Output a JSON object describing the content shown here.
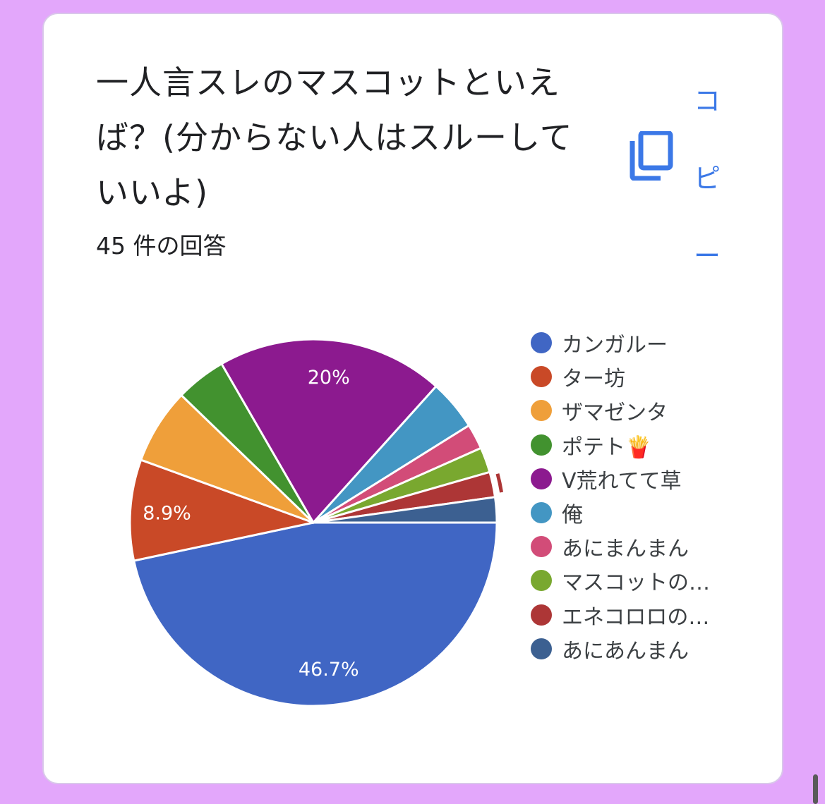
{
  "question": {
    "title": "一人言スレのマスコットといえば？(分からない人はスルーしていいよ)",
    "response_count": "45 件の回答"
  },
  "copy_button": {
    "label": [
      "コ",
      "ピ",
      "ー"
    ],
    "icon": "copy-icon",
    "color": "#3b78e7"
  },
  "chart_data": {
    "type": "pie",
    "categories": [
      "カンガルー",
      "ター坊",
      "ザマゼンタ",
      "ポテト🍟",
      "V荒れてて草",
      "俺",
      "あにまんまん",
      "マスコットの…",
      "エネコロロの…",
      "あにあんまん"
    ],
    "values": [
      21,
      4,
      3,
      2,
      9,
      2,
      1,
      1,
      1,
      1
    ],
    "data_labels": [
      "46.7%",
      "8.9%",
      "",
      "",
      "20%",
      "",
      "",
      "",
      "",
      ""
    ],
    "colors": [
      "#4066c4",
      "#c94927",
      "#ef9f3a",
      "#42922f",
      "#8c1a8f",
      "#4396c3",
      "#d24c78",
      "#79a82f",
      "#ad3636",
      "#3c6091"
    ],
    "total": 45,
    "legend_position": "right"
  }
}
